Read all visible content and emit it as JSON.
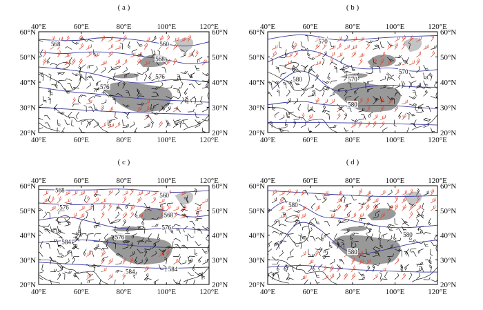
{
  "figure": {
    "panels": [
      {
        "id": "a",
        "label": "( a )",
        "contour_labels": [
          {
            "text": "568",
            "lon": 48,
            "lat": 55
          },
          {
            "text": "560",
            "lon": 99,
            "lat": 55
          },
          {
            "text": "568",
            "lon": 97,
            "lat": 49
          },
          {
            "text": "576",
            "lon": 97,
            "lat": 42
          },
          {
            "text": "576",
            "lon": 71,
            "lat": 38
          }
        ]
      },
      {
        "id": "b",
        "label": "( b )",
        "contour_labels": [
          {
            "text": "570",
            "lon": 66,
            "lat": 56
          },
          {
            "text": "580",
            "lon": 54,
            "lat": 41
          },
          {
            "text": "570",
            "lon": 80,
            "lat": 41
          },
          {
            "text": "570",
            "lon": 104,
            "lat": 44
          },
          {
            "text": "580",
            "lon": 80,
            "lat": 31
          }
        ]
      },
      {
        "id": "c",
        "label": "( c )",
        "contour_labels": [
          {
            "text": "568",
            "lon": 50,
            "lat": 58
          },
          {
            "text": "560",
            "lon": 99,
            "lat": 56
          },
          {
            "text": "576",
            "lon": 52,
            "lat": 51
          },
          {
            "text": "568",
            "lon": 101,
            "lat": 48
          },
          {
            "text": "576",
            "lon": 100,
            "lat": 43
          },
          {
            "text": "576",
            "lon": 78,
            "lat": 39
          },
          {
            "text": "584",
            "lon": 53,
            "lat": 37
          },
          {
            "text": "584",
            "lon": 83,
            "lat": 25
          },
          {
            "text": "584",
            "lon": 103,
            "lat": 26
          }
        ]
      },
      {
        "id": "d",
        "label": "( d )",
        "contour_labels": [
          {
            "text": "580",
            "lon": 52,
            "lat": 52
          },
          {
            "text": "580",
            "lon": 106,
            "lat": 40
          },
          {
            "text": "580",
            "lon": 80,
            "lat": 33
          }
        ]
      }
    ],
    "axes": {
      "lon_ticks": [
        "40°E",
        "60°E",
        "80°E",
        "100°E",
        "120°E"
      ],
      "lat_ticks": [
        "60°N",
        "50°N",
        "40°N",
        "30°N",
        "20°N"
      ],
      "lon_range": [
        40,
        120
      ],
      "lat_range": [
        20,
        60
      ]
    },
    "colors": {
      "contour": "#3a3aa0",
      "terrain": "#999999",
      "wind_strong": "#e0402a",
      "wind_normal": "#111111",
      "coast": "#222222",
      "frame": "#000000"
    }
  }
}
